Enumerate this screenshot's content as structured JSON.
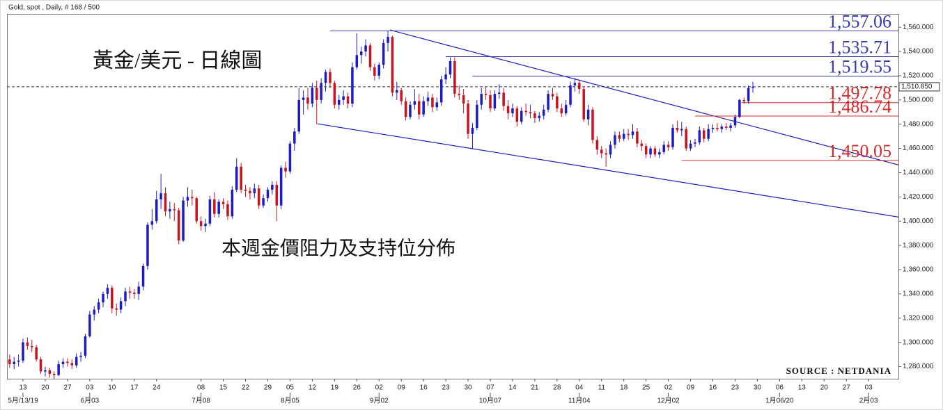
{
  "chart_data": {
    "type": "candlestick",
    "header": "Gold, spot , Daily, # 168 / 500",
    "title": "黃金/美元 - 日線圖",
    "subtitle": "本週金價阻力及支持位分佈",
    "source": "SOURCE : NETDANIA",
    "up_color": "#1c1cc4",
    "down_color": "#c8141e",
    "xlim": [
      -3.6,
      196.7
    ],
    "ylim": [
      1270,
      1571
    ],
    "yticks": [
      {
        "value": 1280,
        "label": "1,280.000"
      },
      {
        "value": 1300,
        "label": "1,300.000"
      },
      {
        "value": 1320,
        "label": "1,320.000"
      },
      {
        "value": 1340,
        "label": "1,340.000"
      },
      {
        "value": 1360,
        "label": "1,360.000"
      },
      {
        "value": 1380,
        "label": "1,380.000"
      },
      {
        "value": 1400,
        "label": "1,400.000"
      },
      {
        "value": 1420,
        "label": "1,420.000"
      },
      {
        "value": 1440,
        "label": "1,440.000"
      },
      {
        "value": 1460,
        "label": "1,460.000"
      },
      {
        "value": 1480,
        "label": "1,480.000"
      },
      {
        "value": 1500,
        "label": "1,500.000"
      },
      {
        "value": 1520,
        "label": "1,520.000"
      },
      {
        "value": 1540,
        "label": "1,540.000"
      },
      {
        "value": 1560,
        "label": "1,560.000"
      }
    ],
    "xticks": [
      {
        "value": 0,
        "label": "13"
      },
      {
        "value": 5,
        "label": "20"
      },
      {
        "value": 10,
        "label": "27"
      },
      {
        "value": 15,
        "label": "03"
      },
      {
        "value": 20,
        "label": "10"
      },
      {
        "value": 25,
        "label": "17"
      },
      {
        "value": 30,
        "label": "24"
      },
      {
        "value": 40,
        "label": "08"
      },
      {
        "value": 45,
        "label": "15"
      },
      {
        "value": 50,
        "label": "22"
      },
      {
        "value": 55,
        "label": "29"
      },
      {
        "value": 60,
        "label": "05"
      },
      {
        "value": 65,
        "label": "12"
      },
      {
        "value": 70,
        "label": "19"
      },
      {
        "value": 75,
        "label": "26"
      },
      {
        "value": 80,
        "label": "02"
      },
      {
        "value": 85,
        "label": "09"
      },
      {
        "value": 90,
        "label": "16"
      },
      {
        "value": 95,
        "label": "23"
      },
      {
        "value": 100,
        "label": "30"
      },
      {
        "value": 105,
        "label": "07"
      },
      {
        "value": 110,
        "label": "14"
      },
      {
        "value": 115,
        "label": "21"
      },
      {
        "value": 120,
        "label": "28"
      },
      {
        "value": 125,
        "label": "04"
      },
      {
        "value": 130,
        "label": "11"
      },
      {
        "value": 135,
        "label": "18"
      },
      {
        "value": 140,
        "label": "25"
      },
      {
        "value": 145,
        "label": "02"
      },
      {
        "value": 150,
        "label": "09"
      },
      {
        "value": 155,
        "label": "16"
      },
      {
        "value": 160,
        "label": "23"
      },
      {
        "value": 165,
        "label": "30"
      },
      {
        "value": 170,
        "label": "06"
      },
      {
        "value": 175,
        "label": "13"
      },
      {
        "value": 180,
        "label": "20"
      },
      {
        "value": 185,
        "label": "27"
      },
      {
        "value": 190,
        "label": "03"
      }
    ],
    "xticks_major": [
      {
        "value": 0,
        "label": "5月/13/19"
      },
      {
        "value": 15,
        "label": "6月03"
      },
      {
        "value": 40,
        "label": "7月08"
      },
      {
        "value": 60,
        "label": "8月05"
      },
      {
        "value": 80,
        "label": "9月02"
      },
      {
        "value": 105,
        "label": "10月07"
      },
      {
        "value": 125,
        "label": "11月04"
      },
      {
        "value": 145,
        "label": "12月02"
      },
      {
        "value": 170,
        "label": "1月06/20"
      },
      {
        "value": 190,
        "label": "2月03"
      }
    ],
    "last": {
      "value": 1510.85,
      "label": "1,510.850"
    },
    "levels": [
      {
        "value": 1557.06,
        "label": "1,557.06",
        "color": "#3a3aae",
        "x_start": 69
      },
      {
        "value": 1535.71,
        "label": "1,535.71",
        "color": "#3a3aae",
        "x_start": 95
      },
      {
        "value": 1519.55,
        "label": "1,519.55",
        "color": "#3a3aae",
        "x_start": 101
      },
      {
        "value": 1497.78,
        "label": "1,497.78",
        "color": "#d42a2a",
        "x_start": 161.5
      },
      {
        "value": 1486.74,
        "label": "1,486.74",
        "color": "#d42a2a",
        "x_start": 151
      },
      {
        "value": 1450.05,
        "label": "1,450.05",
        "color": "#d42a2a",
        "x_start": 148
      }
    ],
    "trendlines": [
      {
        "x": [
          82.5,
          196.7
        ],
        "y": [
          1557.7,
          1446.4
        ],
        "color": "#1c1cc4"
      },
      {
        "x": [
          66.2,
          196.7
        ],
        "y": [
          1480.3,
          1403.4
        ],
        "color": "#1c1cc4"
      }
    ],
    "x": [
      -3,
      -2,
      -1,
      0,
      1,
      2,
      3,
      4,
      5,
      6,
      7,
      8,
      9,
      10,
      11,
      12,
      13,
      14,
      15,
      16,
      17,
      18,
      19,
      20,
      21,
      22,
      23,
      24,
      25,
      26,
      27,
      28,
      29,
      30,
      31,
      32,
      33,
      34,
      35,
      36,
      37,
      38,
      39,
      40,
      41,
      42,
      43,
      44,
      45,
      46,
      47,
      48,
      49,
      50,
      51,
      52,
      53,
      54,
      55,
      56,
      57,
      58,
      59,
      60,
      61,
      62,
      63,
      64,
      65,
      66,
      67,
      68,
      69,
      70,
      71,
      72,
      73,
      74,
      75,
      76,
      77,
      78,
      79,
      80,
      81,
      82,
      83,
      84,
      85,
      86,
      87,
      88,
      89,
      90,
      91,
      92,
      93,
      94,
      95,
      96,
      97,
      98,
      99,
      100,
      101,
      102,
      103,
      104,
      105,
      106,
      107,
      108,
      109,
      110,
      111,
      112,
      113,
      114,
      115,
      116,
      117,
      118,
      119,
      120,
      121,
      122,
      123,
      124,
      125,
      126,
      127,
      128,
      129,
      130,
      131,
      132,
      133,
      134,
      135,
      136,
      137,
      138,
      139,
      140,
      141,
      142,
      143,
      144,
      145,
      146,
      147,
      148,
      149,
      150,
      151,
      152,
      153,
      154,
      155,
      156,
      157,
      158,
      159,
      160,
      161,
      162,
      163,
      164
    ],
    "candles": [
      [
        1286,
        1290,
        1279,
        1282
      ],
      [
        1282,
        1288,
        1278,
        1284
      ],
      [
        1284,
        1290,
        1280,
        1285
      ],
      [
        1285,
        1303,
        1283,
        1300
      ],
      [
        1300,
        1304,
        1294,
        1297
      ],
      [
        1297,
        1302,
        1292,
        1296
      ],
      [
        1296,
        1298,
        1284,
        1286
      ],
      [
        1286,
        1288,
        1274,
        1276
      ],
      [
        1276,
        1280,
        1272,
        1277
      ],
      [
        1277,
        1279,
        1271,
        1274
      ],
      [
        1274,
        1276,
        1270,
        1273
      ],
      [
        1273,
        1285,
        1272,
        1282
      ],
      [
        1282,
        1287,
        1279,
        1284
      ],
      [
        1284,
        1287,
        1280,
        1283
      ],
      [
        1283,
        1286,
        1278,
        1281
      ],
      [
        1281,
        1291,
        1279,
        1288
      ],
      [
        1288,
        1292,
        1284,
        1289
      ],
      [
        1289,
        1307,
        1287,
        1305
      ],
      [
        1305,
        1326,
        1304,
        1323
      ],
      [
        1323,
        1330,
        1318,
        1327
      ],
      [
        1327,
        1336,
        1324,
        1333
      ],
      [
        1333,
        1342,
        1329,
        1340
      ],
      [
        1340,
        1348,
        1336,
        1345
      ],
      [
        1345,
        1347,
        1324,
        1328
      ],
      [
        1328,
        1332,
        1322,
        1327
      ],
      [
        1327,
        1337,
        1324,
        1334
      ],
      [
        1334,
        1345,
        1330,
        1342
      ],
      [
        1342,
        1346,
        1336,
        1341
      ],
      [
        1341,
        1344,
        1336,
        1340
      ],
      [
        1340,
        1350,
        1335,
        1346
      ],
      [
        1346,
        1365,
        1343,
        1363
      ],
      [
        1363,
        1399,
        1360,
        1397
      ],
      [
        1397,
        1410,
        1393,
        1400
      ],
      [
        1400,
        1425,
        1398,
        1418
      ],
      [
        1418,
        1439,
        1410,
        1423
      ],
      [
        1423,
        1428,
        1404,
        1408
      ],
      [
        1408,
        1416,
        1402,
        1410
      ],
      [
        1410,
        1415,
        1400,
        1409
      ],
      [
        1409,
        1411,
        1381,
        1384
      ],
      [
        1384,
        1420,
        1383,
        1417
      ],
      [
        1417,
        1428,
        1412,
        1420
      ],
      [
        1420,
        1426,
        1413,
        1419
      ],
      [
        1419,
        1420,
        1398,
        1400
      ],
      [
        1400,
        1404,
        1392,
        1396
      ],
      [
        1396,
        1402,
        1391,
        1398
      ],
      [
        1398,
        1421,
        1396,
        1418
      ],
      [
        1418,
        1424,
        1403,
        1406
      ],
      [
        1406,
        1418,
        1403,
        1416
      ],
      [
        1416,
        1419,
        1410,
        1414
      ],
      [
        1414,
        1417,
        1401,
        1404
      ],
      [
        1404,
        1429,
        1402,
        1426
      ],
      [
        1426,
        1452,
        1424,
        1445
      ],
      [
        1445,
        1448,
        1423,
        1426
      ],
      [
        1426,
        1430,
        1420,
        1425
      ],
      [
        1425,
        1428,
        1418,
        1423
      ],
      [
        1423,
        1431,
        1419,
        1427
      ],
      [
        1427,
        1430,
        1410,
        1413
      ],
      [
        1413,
        1422,
        1411,
        1419
      ],
      [
        1419,
        1428,
        1416,
        1426
      ],
      [
        1426,
        1433,
        1422,
        1430
      ],
      [
        1430,
        1433,
        1400,
        1413
      ],
      [
        1413,
        1446,
        1410,
        1444
      ],
      [
        1444,
        1449,
        1436,
        1441
      ],
      [
        1441,
        1466,
        1439,
        1464
      ],
      [
        1464,
        1477,
        1458,
        1474
      ],
      [
        1474,
        1510,
        1472,
        1500
      ],
      [
        1500,
        1508,
        1488,
        1502
      ],
      [
        1502,
        1510,
        1492,
        1497
      ],
      [
        1497,
        1514,
        1494,
        1510
      ],
      [
        1510,
        1516,
        1480,
        1500
      ],
      [
        1500,
        1518,
        1497,
        1514
      ],
      [
        1514,
        1525,
        1507,
        1523
      ],
      [
        1523,
        1526,
        1510,
        1514
      ],
      [
        1514,
        1516,
        1493,
        1496
      ],
      [
        1496,
        1504,
        1492,
        1500
      ],
      [
        1500,
        1508,
        1496,
        1503
      ],
      [
        1503,
        1506,
        1493,
        1497
      ],
      [
        1497,
        1531,
        1494,
        1527
      ],
      [
        1527,
        1555,
        1525,
        1537
      ],
      [
        1537,
        1544,
        1530,
        1540
      ],
      [
        1540,
        1550,
        1536,
        1545
      ],
      [
        1545,
        1547,
        1524,
        1527
      ],
      [
        1527,
        1530,
        1516,
        1520
      ],
      [
        1520,
        1531,
        1517,
        1529
      ],
      [
        1529,
        1550,
        1526,
        1547
      ],
      [
        1547,
        1557,
        1540,
        1552
      ],
      [
        1552,
        1553,
        1503,
        1506
      ],
      [
        1506,
        1515,
        1500,
        1508
      ],
      [
        1508,
        1510,
        1496,
        1499
      ],
      [
        1499,
        1502,
        1483,
        1486
      ],
      [
        1486,
        1499,
        1484,
        1496
      ],
      [
        1496,
        1509,
        1492,
        1499
      ],
      [
        1499,
        1505,
        1484,
        1488
      ],
      [
        1488,
        1503,
        1486,
        1499
      ],
      [
        1499,
        1507,
        1495,
        1502
      ],
      [
        1502,
        1505,
        1490,
        1494
      ],
      [
        1494,
        1502,
        1491,
        1498
      ],
      [
        1498,
        1520,
        1495,
        1517
      ],
      [
        1517,
        1527,
        1513,
        1521
      ],
      [
        1521,
        1535,
        1518,
        1532
      ],
      [
        1532,
        1535,
        1502,
        1505
      ],
      [
        1505,
        1512,
        1500,
        1504
      ],
      [
        1504,
        1509,
        1489,
        1497
      ],
      [
        1497,
        1500,
        1468,
        1472
      ],
      [
        1472,
        1481,
        1460,
        1477
      ],
      [
        1477,
        1500,
        1475,
        1496
      ],
      [
        1496,
        1510,
        1492,
        1505
      ],
      [
        1505,
        1511,
        1500,
        1504
      ],
      [
        1504,
        1508,
        1490,
        1493
      ],
      [
        1493,
        1508,
        1491,
        1505
      ],
      [
        1505,
        1513,
        1501,
        1506
      ],
      [
        1506,
        1510,
        1491,
        1495
      ],
      [
        1495,
        1500,
        1484,
        1489
      ],
      [
        1489,
        1497,
        1486,
        1493
      ],
      [
        1493,
        1495,
        1478,
        1482
      ],
      [
        1482,
        1494,
        1480,
        1491
      ],
      [
        1491,
        1497,
        1487,
        1490
      ],
      [
        1490,
        1496,
        1485,
        1489
      ],
      [
        1489,
        1491,
        1481,
        1485
      ],
      [
        1485,
        1490,
        1482,
        1487
      ],
      [
        1487,
        1496,
        1484,
        1492
      ],
      [
        1492,
        1508,
        1490,
        1505
      ],
      [
        1505,
        1510,
        1500,
        1503
      ],
      [
        1503,
        1506,
        1490,
        1493
      ],
      [
        1493,
        1497,
        1486,
        1489
      ],
      [
        1489,
        1500,
        1487,
        1496
      ],
      [
        1496,
        1515,
        1494,
        1512
      ],
      [
        1512,
        1518,
        1507,
        1514
      ],
      [
        1514,
        1516,
        1505,
        1509
      ],
      [
        1509,
        1511,
        1482,
        1484
      ],
      [
        1484,
        1496,
        1479,
        1492
      ],
      [
        1492,
        1494,
        1464,
        1467
      ],
      [
        1467,
        1470,
        1455,
        1459
      ],
      [
        1459,
        1462,
        1452,
        1456
      ],
      [
        1456,
        1460,
        1445,
        1455
      ],
      [
        1455,
        1466,
        1452,
        1463
      ],
      [
        1463,
        1474,
        1460,
        1471
      ],
      [
        1471,
        1474,
        1465,
        1468
      ],
      [
        1468,
        1476,
        1466,
        1472
      ],
      [
        1472,
        1476,
        1467,
        1471
      ],
      [
        1471,
        1480,
        1468,
        1474
      ],
      [
        1474,
        1477,
        1461,
        1464
      ],
      [
        1464,
        1467,
        1458,
        1462
      ],
      [
        1462,
        1464,
        1452,
        1455
      ],
      [
        1455,
        1462,
        1452,
        1460
      ],
      [
        1460,
        1462,
        1453,
        1455
      ],
      [
        1455,
        1460,
        1452,
        1457
      ],
      [
        1457,
        1466,
        1455,
        1463
      ],
      [
        1463,
        1466,
        1458,
        1461
      ],
      [
        1461,
        1480,
        1459,
        1477
      ],
      [
        1477,
        1483,
        1473,
        1475
      ],
      [
        1475,
        1482,
        1470,
        1476
      ],
      [
        1476,
        1478,
        1458,
        1460
      ],
      [
        1460,
        1467,
        1458,
        1464
      ],
      [
        1464,
        1468,
        1461,
        1465
      ],
      [
        1465,
        1478,
        1463,
        1475
      ],
      [
        1475,
        1477,
        1465,
        1468
      ],
      [
        1468,
        1480,
        1466,
        1476
      ],
      [
        1476,
        1480,
        1473,
        1477
      ],
      [
        1477,
        1481,
        1474,
        1476
      ],
      [
        1476,
        1480,
        1473,
        1478
      ],
      [
        1478,
        1481,
        1475,
        1477
      ],
      [
        1477,
        1481,
        1474,
        1479
      ],
      [
        1479,
        1488,
        1477,
        1486
      ],
      [
        1486,
        1501,
        1485,
        1500
      ],
      [
        1500,
        1502,
        1497,
        1499
      ],
      [
        1499,
        1512,
        1497,
        1510
      ],
      [
        1510,
        1515,
        1506,
        1510.85
      ]
    ]
  }
}
